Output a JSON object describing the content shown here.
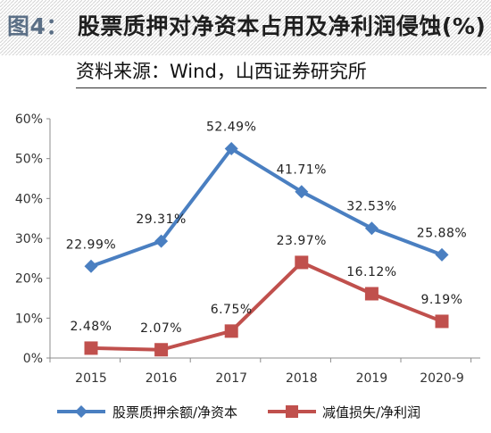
{
  "header": {
    "figure_label": "图4：",
    "title": "股票质押对净资本占用及净利润侵蚀(%)",
    "source": "资料来源：Wind，山西证券研究所"
  },
  "colors": {
    "series_1": "#4a7fc1",
    "series_2": "#c0504d",
    "axis": "#8c8c8c"
  },
  "chart_data": {
    "type": "line",
    "categories": [
      "2015",
      "2016",
      "2017",
      "2018",
      "2019",
      "2020-9"
    ],
    "series": [
      {
        "name": "股票质押余额/净资本",
        "values": [
          22.99,
          29.31,
          52.49,
          41.71,
          32.53,
          25.88
        ],
        "labels": [
          "22.99%",
          "29.31%",
          "52.49%",
          "41.71%",
          "32.53%",
          "25.88%"
        ],
        "marker": "diamond"
      },
      {
        "name": "减值损失/净利润",
        "values": [
          2.48,
          2.07,
          6.75,
          23.97,
          16.12,
          9.19
        ],
        "labels": [
          "2.48%",
          "2.07%",
          "6.75%",
          "23.97%",
          "16.12%",
          "9.19%"
        ],
        "marker": "square"
      }
    ],
    "ylim": [
      0,
      60
    ],
    "yticks": [
      0,
      10,
      20,
      30,
      40,
      50,
      60
    ],
    "ytick_labels": [
      "0%",
      "10%",
      "20%",
      "30%",
      "40%",
      "50%",
      "60%"
    ],
    "grid": false,
    "legend_position": "bottom"
  }
}
